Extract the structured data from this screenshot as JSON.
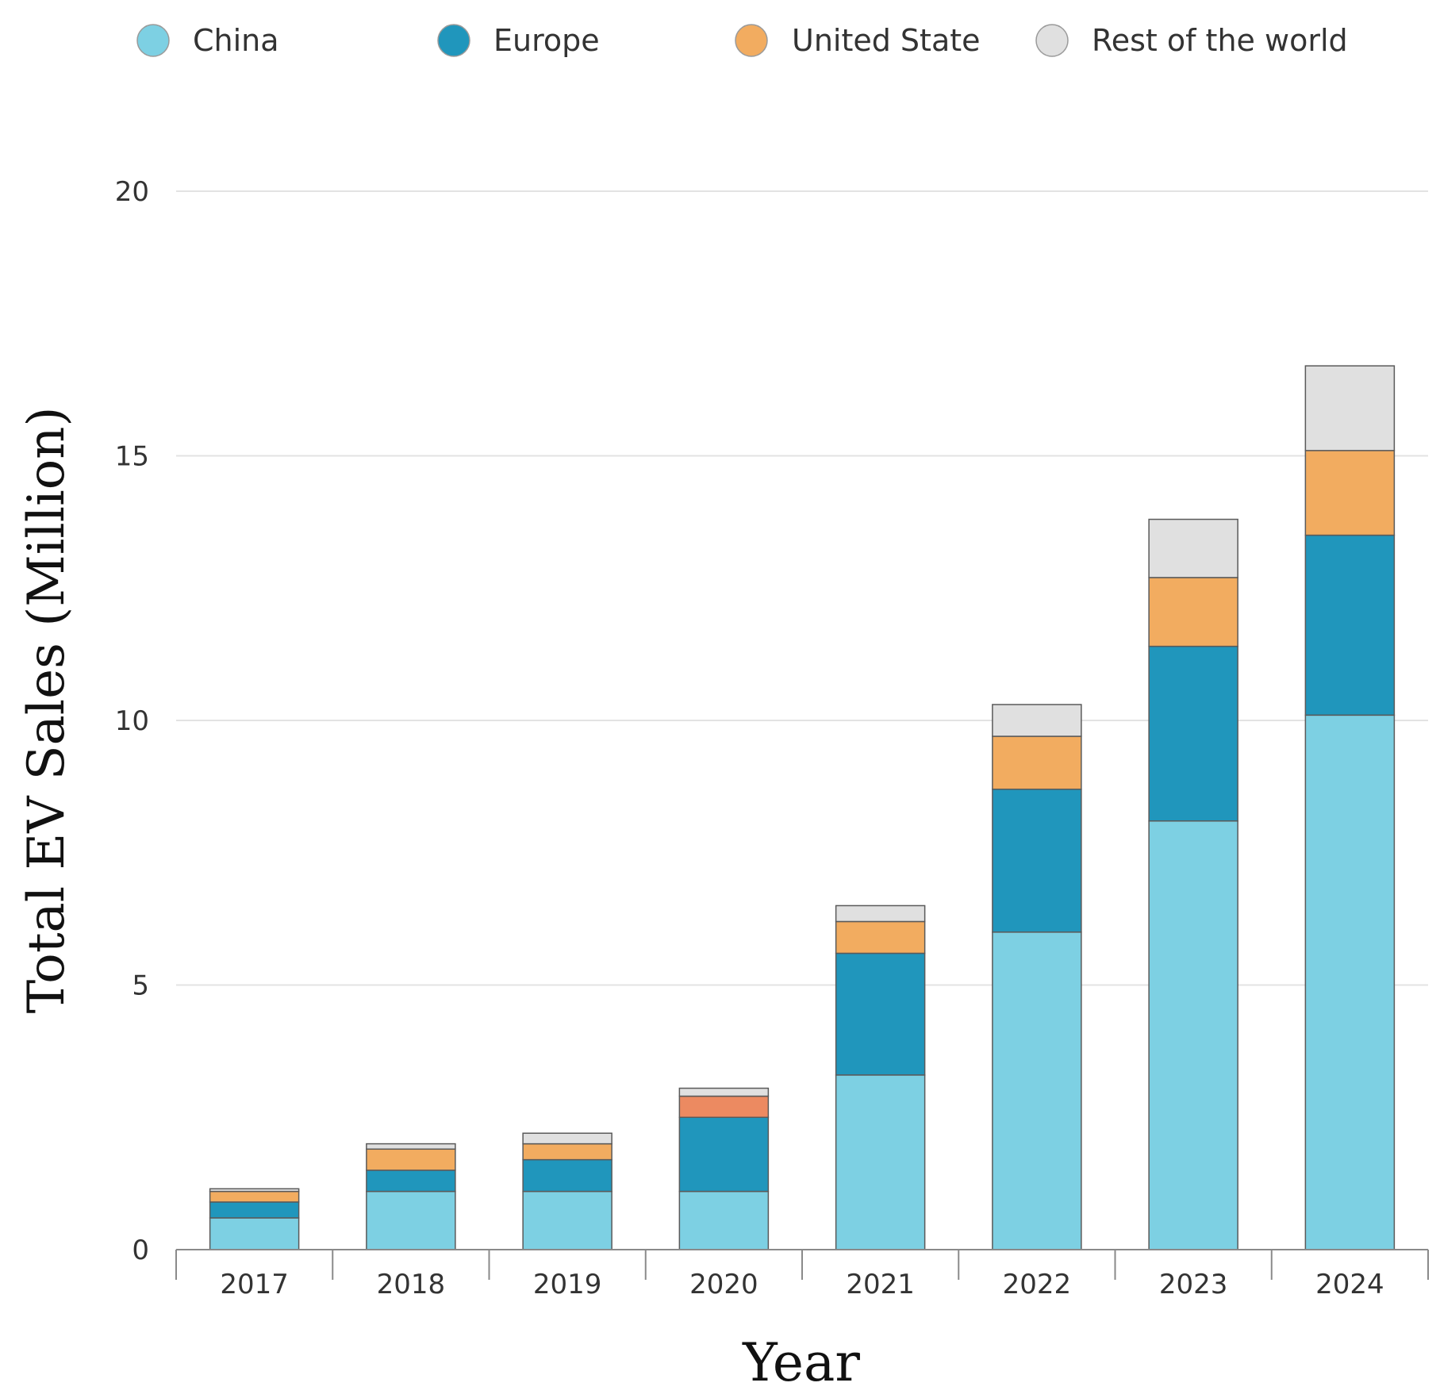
{
  "chart_data": {
    "type": "bar",
    "stacked": true,
    "categories": [
      "2017",
      "2018",
      "2019",
      "2020",
      "2021",
      "2022",
      "2023",
      "2024"
    ],
    "series": [
      {
        "name": "China",
        "color": "#7dd0e3",
        "values": [
          0.6,
          1.1,
          1.1,
          1.1,
          3.3,
          6.0,
          8.1,
          10.1
        ]
      },
      {
        "name": "Europe",
        "color": "#2096bc",
        "values": [
          0.3,
          0.4,
          0.6,
          1.4,
          2.3,
          2.7,
          3.3,
          3.4
        ]
      },
      {
        "name": "United State",
        "color": "#f2ac60",
        "values": [
          0.2,
          0.4,
          0.3,
          0.4,
          0.6,
          1.0,
          1.3,
          1.6
        ]
      },
      {
        "name": "Rest of the world",
        "color": "#e0e0e0",
        "values": [
          0.05,
          0.1,
          0.2,
          0.15,
          0.3,
          0.6,
          1.1,
          1.6
        ]
      }
    ],
    "highlight": {
      "category": "2020",
      "series": "United State",
      "color": "#ec8a61"
    },
    "xlabel": "Year",
    "ylabel": "Total EV Sales (Million)",
    "ylim": [
      0,
      20
    ],
    "yticks": [
      0,
      5,
      10,
      15,
      20
    ],
    "grid": true,
    "legend": "top"
  }
}
